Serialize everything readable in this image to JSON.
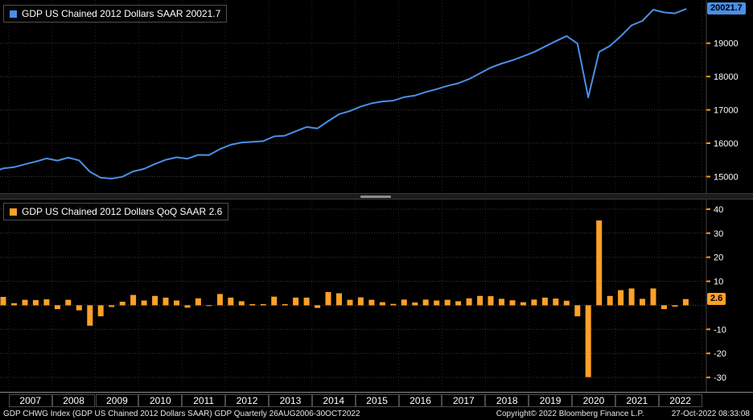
{
  "colors": {
    "background": "#000000",
    "line": "#4a8fe8",
    "bar": "#ffa028",
    "tick": "#ff9c00",
    "grid": "#3a3a3a",
    "axis_text": "#ffffff"
  },
  "top_panel": {
    "series_label": "GDP US Chained 2012 Dollars SAAR",
    "last_value": "20021.7"
  },
  "bottom_panel": {
    "series_label": "GDP US Chained 2012 Dollars QoQ SAAR",
    "last_value": "2.6"
  },
  "x_axis": {
    "years": [
      "2007",
      "2008",
      "2009",
      "2010",
      "2011",
      "2012",
      "2013",
      "2014",
      "2015",
      "2016",
      "2017",
      "2018",
      "2019",
      "2020",
      "2021",
      "2022"
    ]
  },
  "footer": {
    "left": "GDP CHWG Index (GDP US Chained 2012 Dollars SAAR) GDP  Quarterly 26AUG2006-30OCT2022",
    "copyright": "Copyright© 2022 Bloomberg Finance L.P.",
    "timestamp": "27-Oct-2022 08:33:08"
  },
  "chart_data": [
    {
      "type": "line",
      "title": "GDP US Chained 2012 Dollars SAAR",
      "legend_position": "top-left",
      "color": "#4a8fe8",
      "grid": true,
      "ylim": [
        14650,
        20150
      ],
      "yticks": [
        15000,
        16000,
        17000,
        18000,
        19000
      ],
      "last_value": 20021.7,
      "categories": [
        "2006Q3",
        "2006Q4",
        "2007Q1",
        "2007Q2",
        "2007Q3",
        "2007Q4",
        "2008Q1",
        "2008Q2",
        "2008Q3",
        "2008Q4",
        "2009Q1",
        "2009Q2",
        "2009Q3",
        "2009Q4",
        "2010Q1",
        "2010Q2",
        "2010Q3",
        "2010Q4",
        "2011Q1",
        "2011Q2",
        "2011Q3",
        "2011Q4",
        "2012Q1",
        "2012Q2",
        "2012Q3",
        "2012Q4",
        "2013Q1",
        "2013Q2",
        "2013Q3",
        "2013Q4",
        "2014Q1",
        "2014Q2",
        "2014Q3",
        "2014Q4",
        "2015Q1",
        "2015Q2",
        "2015Q3",
        "2015Q4",
        "2016Q1",
        "2016Q2",
        "2016Q3",
        "2016Q4",
        "2017Q1",
        "2017Q2",
        "2017Q3",
        "2017Q4",
        "2018Q1",
        "2018Q2",
        "2018Q3",
        "2018Q4",
        "2019Q1",
        "2019Q2",
        "2019Q3",
        "2019Q4",
        "2020Q1",
        "2020Q2",
        "2020Q3",
        "2020Q4",
        "2021Q1",
        "2021Q2",
        "2021Q3",
        "2021Q4",
        "2022Q1",
        "2022Q2",
        "2022Q3"
      ],
      "values": [
        15126,
        15249,
        15284,
        15368,
        15452,
        15544,
        15480,
        15569,
        15487,
        15144,
        14967,
        14939,
        14994,
        15156,
        15232,
        15379,
        15504,
        15578,
        15538,
        15651,
        15646,
        15827,
        15956,
        16023,
        16043,
        16063,
        16207,
        16228,
        16359,
        16488,
        16444,
        16664,
        16871,
        16967,
        17101,
        17197,
        17252,
        17278,
        17381,
        17432,
        17534,
        17622,
        17722,
        17797,
        17925,
        18096,
        18268,
        18390,
        18487,
        18608,
        18733,
        18900,
        19060,
        19215,
        18990,
        17376,
        18739,
        18919,
        19210,
        19538,
        19668,
        20004,
        19924,
        19894,
        20021.7
      ]
    },
    {
      "type": "bar",
      "title": "GDP US Chained 2012 Dollars QoQ SAAR",
      "legend_position": "top-left",
      "color": "#ffa028",
      "grid": true,
      "ylim": [
        -34,
        42
      ],
      "yticks": [
        40,
        30,
        20,
        10,
        0,
        -10,
        -20,
        -30
      ],
      "hide_zero_label": true,
      "last_value": 2.6,
      "categories": [
        "2006Q3",
        "2006Q4",
        "2007Q1",
        "2007Q2",
        "2007Q3",
        "2007Q4",
        "2008Q1",
        "2008Q2",
        "2008Q3",
        "2008Q4",
        "2009Q1",
        "2009Q2",
        "2009Q3",
        "2009Q4",
        "2010Q1",
        "2010Q2",
        "2010Q3",
        "2010Q4",
        "2011Q1",
        "2011Q2",
        "2011Q3",
        "2011Q4",
        "2012Q1",
        "2012Q2",
        "2012Q3",
        "2012Q4",
        "2013Q1",
        "2013Q2",
        "2013Q3",
        "2013Q4",
        "2014Q1",
        "2014Q2",
        "2014Q3",
        "2014Q4",
        "2015Q1",
        "2015Q2",
        "2015Q3",
        "2015Q4",
        "2016Q1",
        "2016Q2",
        "2016Q3",
        "2016Q4",
        "2017Q1",
        "2017Q2",
        "2017Q3",
        "2017Q4",
        "2018Q1",
        "2018Q2",
        "2018Q3",
        "2018Q4",
        "2019Q1",
        "2019Q2",
        "2019Q3",
        "2019Q4",
        "2020Q1",
        "2020Q2",
        "2020Q3",
        "2020Q4",
        "2021Q1",
        "2021Q2",
        "2021Q3",
        "2021Q4",
        "2022Q1",
        "2022Q2",
        "2022Q3"
      ],
      "values": [
        0.6,
        3.5,
        0.9,
        2.3,
        2.2,
        2.5,
        -1.6,
        2.3,
        -2.1,
        -8.5,
        -4.6,
        -0.7,
        1.5,
        4.3,
        2.0,
        3.9,
        3.2,
        2.0,
        -1.0,
        2.9,
        -0.1,
        4.7,
        3.2,
        1.7,
        0.5,
        0.5,
        3.6,
        0.5,
        3.2,
        3.2,
        -1.1,
        5.5,
        5.0,
        2.3,
        3.3,
        2.3,
        1.3,
        0.6,
        2.4,
        1.2,
        2.4,
        2.0,
        2.3,
        1.7,
        2.9,
        3.9,
        3.8,
        2.7,
        2.1,
        1.3,
        2.4,
        3.2,
        2.8,
        1.9,
        -4.6,
        -29.9,
        35.3,
        3.9,
        6.3,
        7.0,
        2.7,
        7.0,
        -1.6,
        -0.6,
        2.6
      ]
    }
  ]
}
